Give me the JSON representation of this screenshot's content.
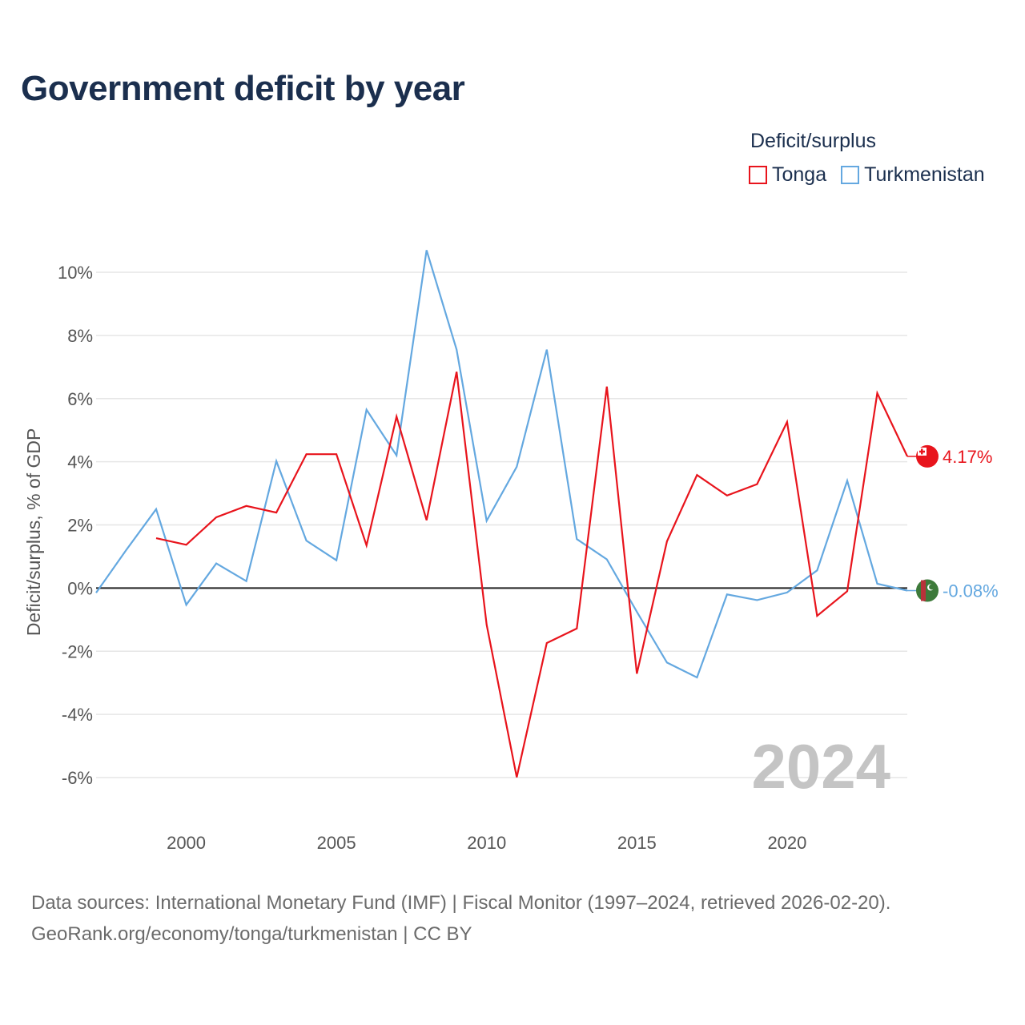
{
  "title": "Government deficit by year",
  "legend": {
    "title": "Deficit/surplus",
    "items": [
      {
        "label": "Tonga",
        "color": "#e8141c"
      },
      {
        "label": "Turkmenistan",
        "color": "#64a8e0"
      }
    ]
  },
  "chart_data": {
    "type": "line",
    "title": "Government deficit by year",
    "ylabel": "Deficit/surplus, % of GDP",
    "xlabel": "",
    "xlim": [
      1997,
      2024
    ],
    "ylim": [
      -7,
      10.7
    ],
    "x_ticks": [
      2000,
      2005,
      2010,
      2015,
      2020
    ],
    "y_ticks": [
      10,
      8,
      6,
      4,
      2,
      0,
      -2,
      -4,
      -6
    ],
    "y_tick_labels": [
      "10%",
      "8%",
      "6%",
      "4%",
      "2%",
      "0%",
      "-2%",
      "-4%",
      "-6%"
    ],
    "watermark_year": "2024",
    "series": [
      {
        "name": "Tonga",
        "color": "#e8141c",
        "x": [
          1999,
          2000,
          2001,
          2002,
          2003,
          2004,
          2005,
          2006,
          2007,
          2008,
          2009,
          2010,
          2011,
          2012,
          2013,
          2014,
          2015,
          2016,
          2017,
          2018,
          2019,
          2020,
          2021,
          2022,
          2023,
          2024
        ],
        "values": [
          1.58,
          1.37,
          2.24,
          2.6,
          2.39,
          4.24,
          4.24,
          1.35,
          5.43,
          2.15,
          6.85,
          -1.16,
          -5.99,
          -1.74,
          -1.28,
          6.38,
          -2.71,
          1.48,
          3.58,
          2.93,
          3.29,
          5.26,
          -0.88,
          -0.1,
          6.17,
          4.17
        ],
        "end_label": "4.17%"
      },
      {
        "name": "Turkmenistan",
        "color": "#64a8e0",
        "x": [
          1997,
          1998,
          1999,
          2000,
          2001,
          2002,
          2003,
          2004,
          2005,
          2006,
          2007,
          2008,
          2009,
          2010,
          2011,
          2012,
          2013,
          2014,
          2015,
          2016,
          2017,
          2018,
          2019,
          2020,
          2021,
          2022,
          2023,
          2024
        ],
        "values": [
          -0.15,
          1.2,
          2.5,
          -0.53,
          0.78,
          0.22,
          4.02,
          1.5,
          0.88,
          5.65,
          4.2,
          10.7,
          7.55,
          2.13,
          3.84,
          7.55,
          1.55,
          0.91,
          -0.75,
          -2.36,
          -2.83,
          -0.2,
          -0.38,
          -0.14,
          0.56,
          3.4,
          0.14,
          -0.08
        ],
        "end_label": "-0.08%"
      }
    ]
  },
  "footer": {
    "line1": "Data sources: International Monetary Fund (IMF) | Fiscal Monitor (1997–2024, retrieved 2026-02-20).",
    "line2": "GeoRank.org/economy/tonga/turkmenistan | CC BY"
  }
}
